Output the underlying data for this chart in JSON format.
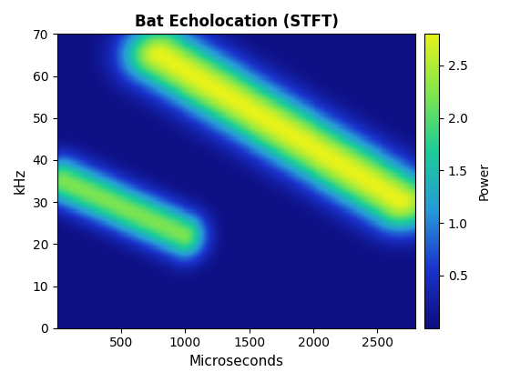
{
  "title": "Bat Echolocation (STFT)",
  "xlabel": "Microseconds",
  "ylabel": "kHz",
  "colorbar_label": "Power",
  "xlim": [
    0,
    2800
  ],
  "ylim": [
    0,
    70
  ],
  "xticks": [
    500,
    1000,
    1500,
    2000,
    2500
  ],
  "yticks": [
    0,
    10,
    20,
    30,
    40,
    50,
    60,
    70
  ],
  "colorbar_ticks": [
    0.5,
    1.0,
    1.5,
    2.0,
    2.5
  ],
  "vmin": 0.0,
  "vmax": 2.8,
  "background_color": "#1a1a8c",
  "figsize": [
    5.6,
    4.2
  ],
  "dpi": 100,
  "chirp1": {
    "t_start": 50,
    "t_end": 1000,
    "f_start": 35,
    "f_end": 22,
    "amplitude": 2.2,
    "sigma_t": 120,
    "sigma_f": 4
  },
  "chirp2": {
    "t_start": 800,
    "t_end": 2700,
    "f_start": 65,
    "f_end": 30,
    "amplitude": 2.8,
    "sigma_t": 200,
    "sigma_f": 5
  }
}
